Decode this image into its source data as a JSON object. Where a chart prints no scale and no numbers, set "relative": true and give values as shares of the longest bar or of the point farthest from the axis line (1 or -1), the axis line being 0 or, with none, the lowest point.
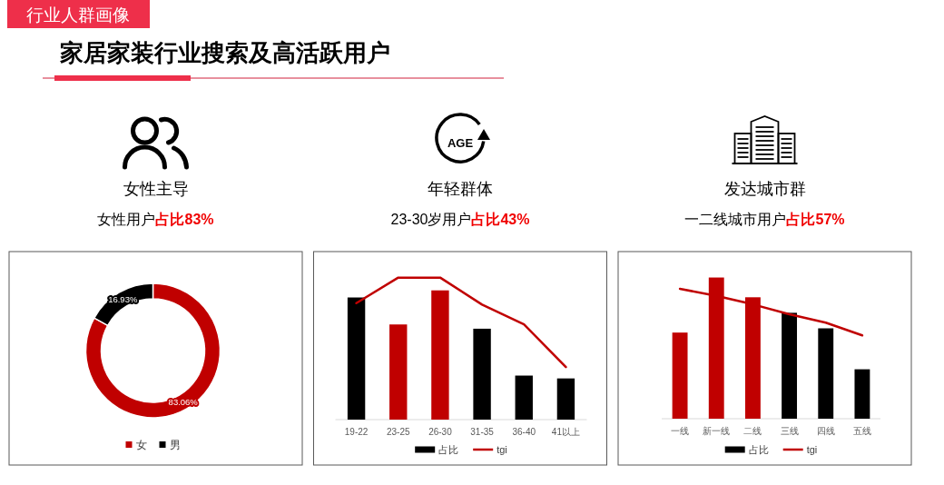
{
  "chart_data": [
    {
      "type": "other",
      "title": "家居家装行业搜索及高活跃用户",
      "annotations": [
        "行业人群画像"
      ]
    },
    {
      "type": "donut",
      "title": "女性主导",
      "subtitle": "女性用户",
      "annotations": [
        "占比83%"
      ],
      "categories": [
        "女",
        "男"
      ],
      "values": [
        83.06,
        16.93
      ],
      "colors": [
        "#c00000",
        "#000000"
      ],
      "value_labels": [
        "83.06%",
        "16.93%"
      ],
      "legend": "bottom"
    },
    {
      "type": "bar",
      "title": "年轻群体",
      "subtitle": "23-30岁用户",
      "annotations": [
        "占比43%",
        "AGE"
      ],
      "categories": [
        "19-22",
        "23-25",
        "26-30",
        "31-35",
        "36-40",
        "41以上"
      ],
      "relative": true,
      "series": [
        {
          "name": "占比",
          "color": "#000000",
          "colors": [
            "#000000",
            "#c00000",
            "#c00000",
            "#000000",
            "#000000",
            "#000000"
          ],
          "values": [
            0.86,
            0.67,
            0.91,
            0.64,
            0.31,
            0.29
          ]
        },
        {
          "name": "tgi",
          "type": "line",
          "color": "#c00000",
          "values": [
            0.82,
            1,
            1,
            0.81,
            0.67,
            0.37
          ]
        }
      ],
      "legend": "bottom"
    },
    {
      "type": "bar",
      "title": "发达城市群",
      "subtitle": "一二线城市用户",
      "annotations": [
        "占比57%"
      ],
      "categories": [
        "一线",
        "新一线",
        "二线",
        "三线",
        "四线",
        "五线"
      ],
      "relative": true,
      "series": [
        {
          "name": "占比",
          "color": "#000000",
          "colors": [
            "#c00000",
            "#c00000",
            "#c00000",
            "#000000",
            "#000000",
            "#000000"
          ],
          "values": [
            0.61,
            1,
            0.86,
            0.75,
            0.64,
            0.35
          ]
        },
        {
          "name": "tgi",
          "type": "line",
          "color": "#c00000",
          "values": [
            0.92,
            0.87,
            0.81,
            0.74,
            0.68,
            0.59
          ]
        }
      ],
      "legend": "bottom"
    }
  ]
}
